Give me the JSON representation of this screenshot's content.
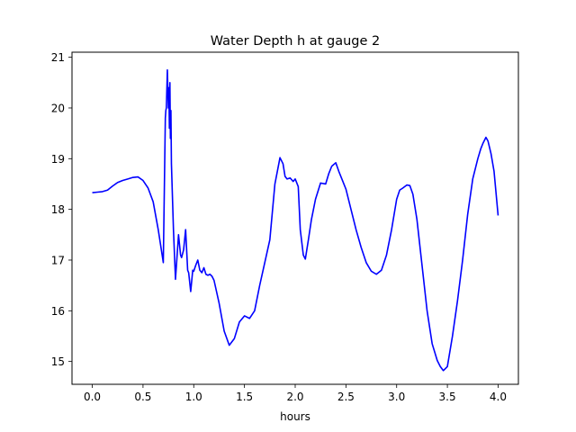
{
  "chart_data": {
    "type": "line",
    "title": "Water Depth h at gauge 2",
    "xlabel": "hours",
    "ylabel": "",
    "xlim": [
      -0.2,
      4.2
    ],
    "ylim": [
      14.55,
      21.1
    ],
    "xticks": [
      0.0,
      0.5,
      1.0,
      1.5,
      2.0,
      2.5,
      3.0,
      3.5,
      4.0
    ],
    "xtick_labels": [
      "0.0",
      "0.5",
      "1.0",
      "1.5",
      "2.0",
      "2.5",
      "3.0",
      "3.5",
      "4.0"
    ],
    "yticks": [
      15,
      16,
      17,
      18,
      19,
      20,
      21
    ],
    "ytick_labels": [
      "15",
      "16",
      "17",
      "18",
      "19",
      "20",
      "21"
    ],
    "grid": false,
    "series": [
      {
        "color": "#0000ff",
        "x": [
          0.0,
          0.05,
          0.1,
          0.15,
          0.2,
          0.25,
          0.3,
          0.35,
          0.4,
          0.45,
          0.5,
          0.55,
          0.6,
          0.65,
          0.7,
          0.72,
          0.725,
          0.73,
          0.74,
          0.75,
          0.755,
          0.76,
          0.765,
          0.77,
          0.775,
          0.78,
          0.8,
          0.82,
          0.85,
          0.87,
          0.88,
          0.9,
          0.92,
          0.94,
          0.95,
          0.97,
          0.99,
          1.0,
          1.02,
          1.04,
          1.06,
          1.08,
          1.1,
          1.12,
          1.14,
          1.16,
          1.18,
          1.2,
          1.25,
          1.3,
          1.35,
          1.4,
          1.45,
          1.5,
          1.55,
          1.6,
          1.65,
          1.7,
          1.75,
          1.8,
          1.85,
          1.88,
          1.9,
          1.92,
          1.95,
          1.98,
          2.0,
          2.03,
          2.05,
          2.08,
          2.1,
          2.13,
          2.16,
          2.2,
          2.25,
          2.3,
          2.33,
          2.36,
          2.4,
          2.43,
          2.45,
          2.5,
          2.55,
          2.6,
          2.65,
          2.7,
          2.75,
          2.8,
          2.85,
          2.9,
          2.95,
          3.0,
          3.03,
          3.06,
          3.1,
          3.13,
          3.16,
          3.2,
          3.25,
          3.3,
          3.35,
          3.4,
          3.43,
          3.46,
          3.5,
          3.55,
          3.6,
          3.65,
          3.7,
          3.75,
          3.8,
          3.83,
          3.85,
          3.88,
          3.9,
          3.93,
          3.96,
          4.0
        ],
        "y": [
          18.33,
          18.34,
          18.35,
          18.38,
          18.46,
          18.53,
          18.57,
          18.6,
          18.63,
          18.64,
          18.57,
          18.42,
          18.15,
          17.6,
          16.95,
          19.8,
          19.95,
          20.0,
          20.75,
          20.0,
          20.4,
          19.6,
          20.5,
          19.4,
          19.95,
          18.9,
          17.6,
          16.62,
          17.5,
          17.1,
          17.05,
          17.2,
          17.6,
          16.8,
          16.75,
          16.38,
          16.8,
          16.78,
          16.9,
          17.0,
          16.8,
          16.75,
          16.85,
          16.72,
          16.7,
          16.72,
          16.68,
          16.6,
          16.15,
          15.6,
          15.32,
          15.45,
          15.78,
          15.9,
          15.85,
          16.0,
          16.5,
          16.95,
          17.4,
          18.5,
          19.02,
          18.9,
          18.65,
          18.6,
          18.62,
          18.55,
          18.6,
          18.45,
          17.6,
          17.1,
          17.02,
          17.4,
          17.8,
          18.2,
          18.52,
          18.5,
          18.7,
          18.85,
          18.92,
          18.75,
          18.65,
          18.4,
          18.0,
          17.6,
          17.25,
          16.95,
          16.78,
          16.72,
          16.8,
          17.1,
          17.6,
          18.2,
          18.38,
          18.42,
          18.48,
          18.47,
          18.3,
          17.8,
          16.9,
          16.0,
          15.35,
          15.02,
          14.9,
          14.82,
          14.9,
          15.5,
          16.2,
          17.0,
          17.9,
          18.6,
          19.0,
          19.2,
          19.3,
          19.42,
          19.35,
          19.1,
          18.75,
          17.88
        ]
      }
    ]
  }
}
